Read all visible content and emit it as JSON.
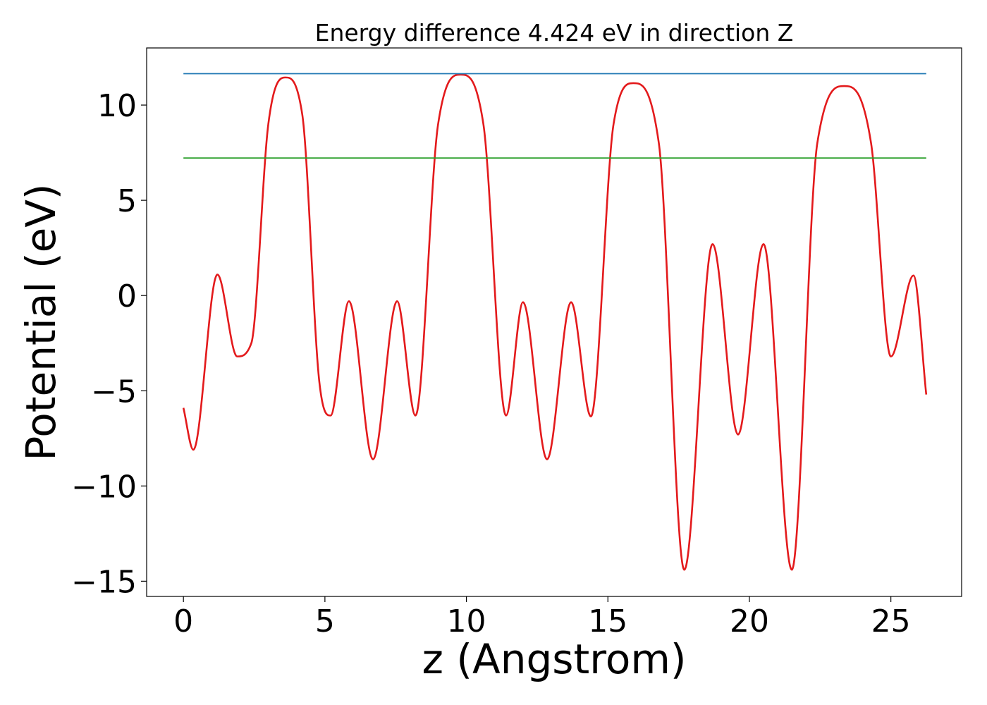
{
  "chart_data": {
    "type": "line",
    "title": "Energy difference 4.424 eV in direction Z",
    "xlabel": "z (Angstrom)",
    "ylabel": "Potential (eV)",
    "xlim": [
      -1.3,
      27.5
    ],
    "ylim": [
      -15.8,
      13.0
    ],
    "xticks": [
      0,
      5,
      10,
      15,
      20,
      25
    ],
    "xtick_labels": [
      "0",
      "5",
      "10",
      "15",
      "20",
      "25"
    ],
    "yticks": [
      -15,
      -10,
      -5,
      0,
      5,
      10
    ],
    "ytick_labels": [
      "−15",
      "−10",
      "−5",
      "0",
      "5",
      "10"
    ],
    "grid": false,
    "colors": {
      "potential": "#e31a1c",
      "max_line": "#1f77b4",
      "avg_line": "#2ca02c"
    },
    "series": [
      {
        "style": "curve",
        "color": "#e31a1c",
        "x": [
          0,
          0.35,
          1.2,
          1.9,
          2.4,
          3.0,
          3.6,
          4.2,
          4.8,
          5.2,
          5.85,
          6.7,
          7.55,
          8.2,
          9.0,
          9.8,
          10.6,
          11.4,
          12.0,
          12.85,
          13.7,
          14.4,
          15.2,
          15.9,
          16.8,
          17.7,
          18.7,
          19.6,
          20.5,
          21.5,
          22.4,
          23.35,
          24.3,
          25.0,
          25.8,
          26.25
        ],
        "y": [
          -5.9,
          -8.1,
          1.1,
          -3.2,
          -2.5,
          9.0,
          11.45,
          9.5,
          -4.5,
          -6.3,
          -0.3,
          -8.6,
          -0.3,
          -6.3,
          9.0,
          11.6,
          9.0,
          -6.3,
          -0.35,
          -8.6,
          -0.35,
          -6.35,
          9.0,
          11.15,
          8.0,
          -14.4,
          2.7,
          -7.3,
          2.7,
          -14.4,
          8.0,
          11.0,
          8.0,
          -3.2,
          1.05,
          -5.2
        ]
      },
      {
        "style": "straight",
        "color": "#1f77b4",
        "x": [
          0,
          26.25
        ],
        "y": [
          11.65,
          11.65
        ]
      },
      {
        "style": "straight",
        "color": "#2ca02c",
        "x": [
          0,
          26.25
        ],
        "y": [
          7.22,
          7.22
        ]
      }
    ]
  }
}
